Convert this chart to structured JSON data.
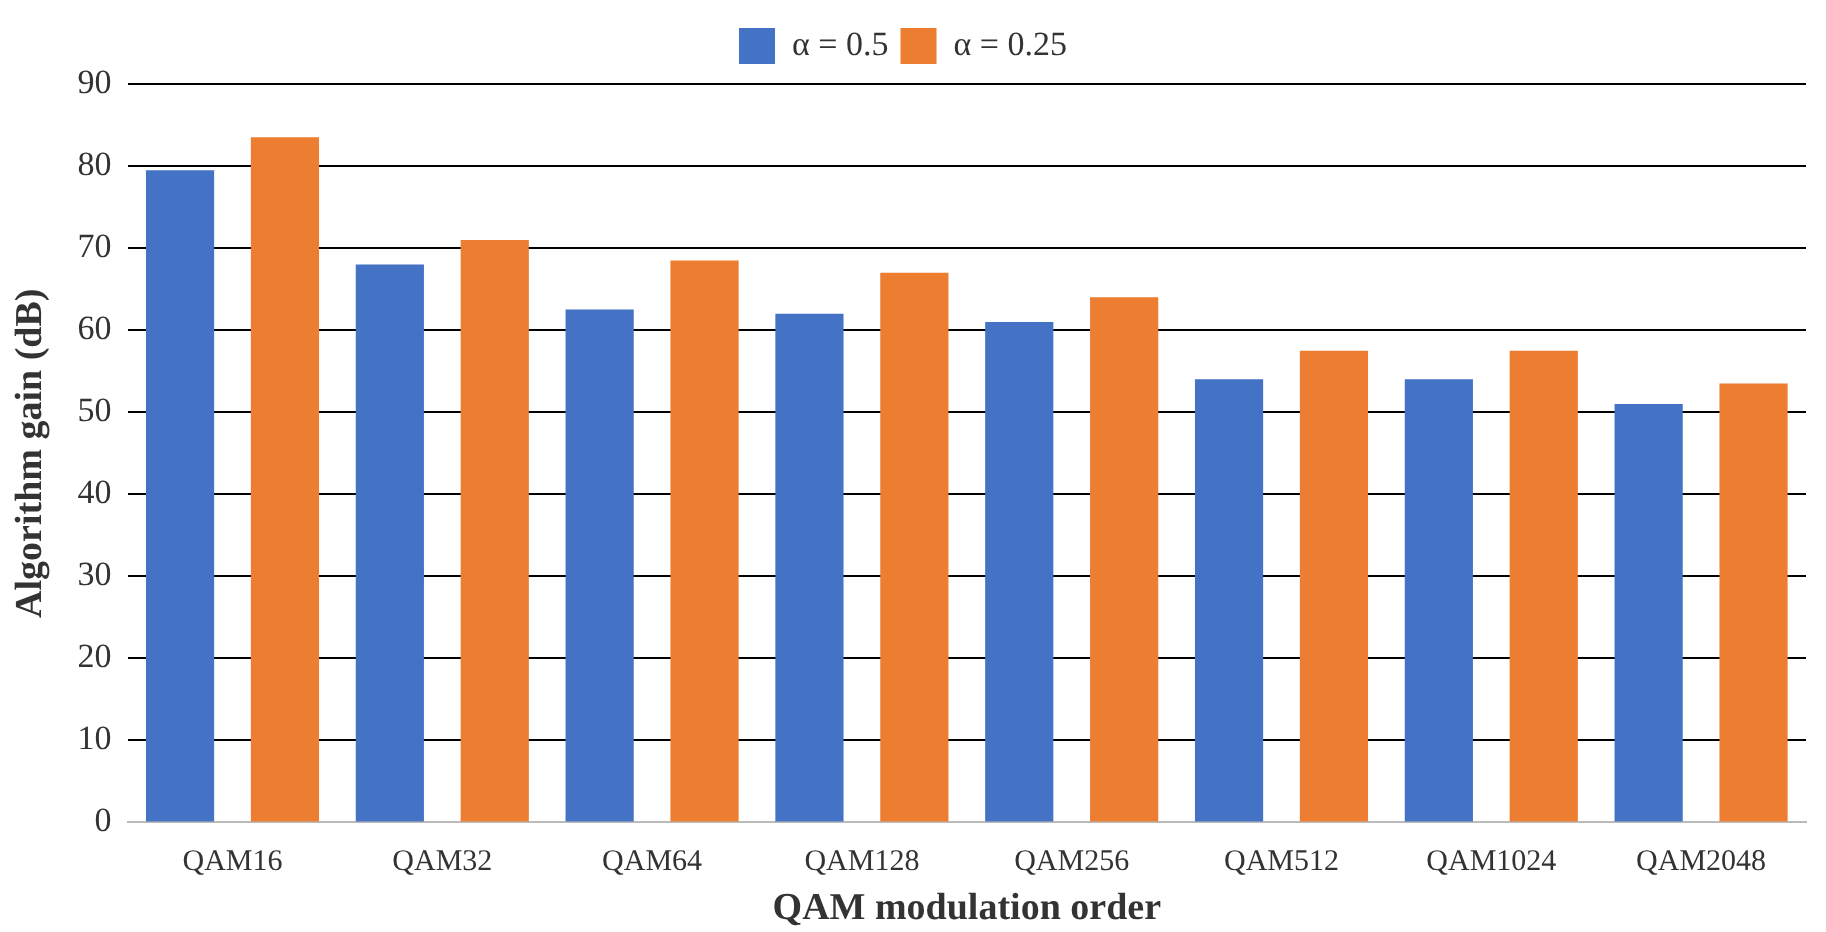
{
  "chart_data": {
    "type": "bar",
    "xlabel": "QAM modulation order",
    "ylabel": "Algorithm gain (dB)",
    "categories": [
      "QAM16",
      "QAM32",
      "QAM64",
      "QAM128",
      "QAM256",
      "QAM512",
      "QAM1024",
      "QAM2048"
    ],
    "series": [
      {
        "name": "α = 0.5",
        "color": "#4472c4",
        "values": [
          79.5,
          68,
          62.5,
          62,
          61,
          54,
          54,
          51
        ]
      },
      {
        "name": "α = 0.25",
        "color": "#ed7d31",
        "values": [
          83.5,
          71,
          68.5,
          67,
          64,
          57.5,
          57.5,
          53.5
        ]
      }
    ],
    "ylim": [
      0,
      90
    ],
    "yticks": [
      0,
      10,
      20,
      30,
      40,
      50,
      60,
      70,
      80,
      90
    ],
    "grid": "y",
    "legend": "top"
  }
}
